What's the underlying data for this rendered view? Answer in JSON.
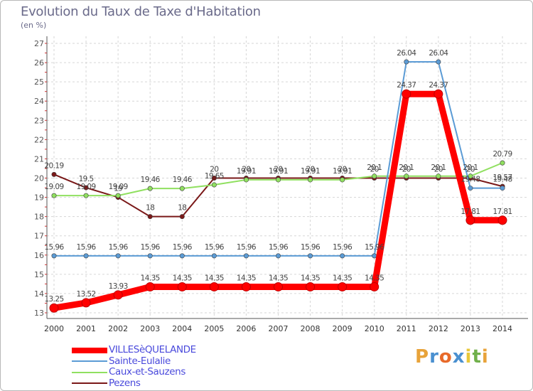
{
  "header": {
    "title": "Evolution du Taux de Taxe d'Habitation",
    "subtitle": "(en %)"
  },
  "brand": {
    "letters": [
      "P",
      "r",
      "o",
      "x",
      "i",
      "t",
      "i"
    ],
    "colors": [
      "#e8a33a",
      "#4a90d0",
      "#e86a2a",
      "#4a90d0",
      "#e8c83a",
      "#70b04a",
      "#e8a33a"
    ]
  },
  "chart_data": {
    "type": "line",
    "x": [
      "2000",
      "2001",
      "2002",
      "2003",
      "2004",
      "2005",
      "2006",
      "2007",
      "2008",
      "2009",
      "2010",
      "2011",
      "2012",
      "2013",
      "2014"
    ],
    "ylim": [
      13,
      27
    ],
    "yticks": [
      "13",
      "14",
      "15",
      "16",
      "17",
      "18",
      "19",
      "20",
      "21",
      "22",
      "23",
      "24",
      "25",
      "26",
      "27"
    ],
    "grid": true,
    "legend": "bottom-left",
    "series": [
      {
        "name": "VILLESèQUELANDE",
        "color": "#ff0000",
        "values": [
          13.25,
          13.52,
          13.93,
          14.35,
          14.35,
          14.35,
          14.35,
          14.35,
          14.35,
          14.35,
          14.35,
          24.37,
          24.37,
          17.81,
          17.81
        ],
        "labels": [
          "13.25",
          "13.52",
          "13.93",
          "14.35",
          "14.35",
          "14.35",
          "14.35",
          "14.35",
          "14.35",
          "14.35",
          "14.35",
          "24.37",
          "24.37",
          "17.81",
          "17.81"
        ]
      },
      {
        "name": "Sainte-Eulalie",
        "color": "#5b9bd5",
        "values": [
          15.96,
          15.96,
          15.96,
          15.96,
          15.96,
          15.96,
          15.96,
          15.96,
          15.96,
          15.96,
          15.96,
          26.04,
          26.04,
          19.48,
          19.48
        ],
        "labels": [
          "15.96",
          "15.96",
          "15.96",
          "15.96",
          "15.96",
          "15.96",
          "15.96",
          "15.96",
          "15.96",
          "15.96",
          "15.96",
          "26.04",
          "26.04",
          "19.48",
          "19.48"
        ]
      },
      {
        "name": "Caux-et-Sauzens",
        "color": "#90e060",
        "values": [
          19.09,
          19.09,
          19.09,
          19.46,
          19.46,
          19.65,
          19.91,
          19.91,
          19.91,
          19.91,
          20.1,
          20.1,
          20.1,
          20.1,
          20.79
        ],
        "labels": [
          "19.09",
          "19.09",
          "19.09",
          "19.46",
          "19.46",
          "19.65",
          "19.91",
          "19.91",
          "19.91",
          "19.91",
          "20.1",
          "20.1",
          "20.1",
          "20.1",
          "20.79"
        ]
      },
      {
        "name": "Pezens",
        "color": "#7a1818",
        "values": [
          20.19,
          19.5,
          19,
          18,
          18,
          20,
          20,
          20,
          20,
          20,
          20,
          20,
          20,
          20,
          19.57
        ],
        "labels": [
          "20.19",
          "19.5",
          "19",
          "18",
          "18",
          "20",
          "20",
          "20",
          "20",
          "20",
          "20",
          "20",
          "20",
          "20",
          "19.57"
        ]
      }
    ]
  }
}
